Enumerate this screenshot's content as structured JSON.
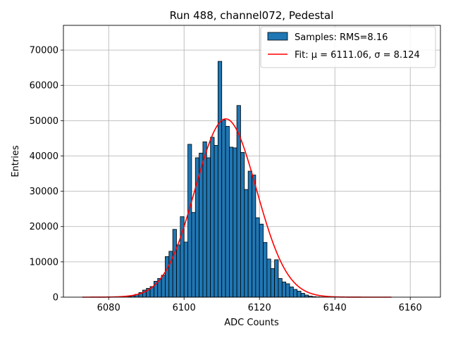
{
  "chart_data": {
    "type": "bar",
    "title": "Run 488, channel072, Pedestal",
    "xlabel": "ADC Counts",
    "ylabel": "Entries",
    "xlim": [
      6068,
      6168
    ],
    "ylim": [
      0,
      77000
    ],
    "xticks": [
      6080,
      6100,
      6120,
      6140,
      6160
    ],
    "yticks": [
      0,
      10000,
      20000,
      30000,
      40000,
      50000,
      60000,
      70000
    ],
    "grid": true,
    "legend_position": "top-right",
    "bin_width": 1,
    "colors": {
      "bars": "#1f77b4",
      "fit": "#ff0000",
      "edge": "#000000"
    },
    "histogram": {
      "name": "Samples: RMS=8.16",
      "bins": [
        6085,
        6086,
        6087,
        6088,
        6089,
        6090,
        6091,
        6092,
        6093,
        6094,
        6095,
        6096,
        6097,
        6098,
        6099,
        6100,
        6101,
        6102,
        6103,
        6104,
        6105,
        6106,
        6107,
        6108,
        6109,
        6110,
        6111,
        6112,
        6113,
        6114,
        6115,
        6116,
        6117,
        6118,
        6119,
        6120,
        6121,
        6122,
        6123,
        6124,
        6125,
        6126,
        6127,
        6128,
        6129,
        6130,
        6131,
        6132,
        6133,
        6134,
        6135,
        6136
      ],
      "values": [
        200,
        400,
        800,
        1300,
        2000,
        2500,
        3000,
        4500,
        5300,
        6200,
        11500,
        13000,
        19200,
        14800,
        22800,
        15600,
        43300,
        24000,
        39500,
        40800,
        44000,
        39500,
        45300,
        43000,
        66800,
        50200,
        48400,
        42500,
        42300,
        54300,
        41000,
        30500,
        35700,
        34600,
        22500,
        20700,
        15500,
        10800,
        8100,
        10600,
        5300,
        4300,
        3800,
        2900,
        2200,
        1700,
        1100,
        600,
        300,
        150,
        80,
        40
      ]
    },
    "fit": {
      "name": "Fit: μ = 6111.06, σ = 8.124",
      "type": "gaussian",
      "mu": 6111.06,
      "sigma": 8.124,
      "amplitude": 50500,
      "x_range": [
        6073,
        6155
      ]
    }
  }
}
